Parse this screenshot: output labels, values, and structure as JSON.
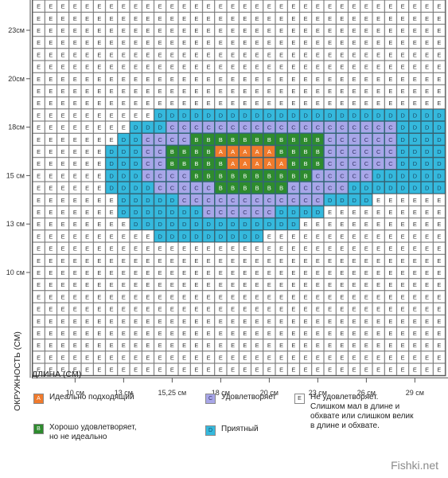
{
  "chart_data": {
    "type": "heatmap",
    "cols": 34,
    "rows": 31,
    "colors": {
      "A": "#f07a2c",
      "B": "#2e8b2e",
      "C": "#a8a6e8",
      "D": "#35b9dd",
      "E": "#ffffff"
    },
    "text_colors": {
      "A": "#ffffff",
      "B": "#ffffff",
      "C": "#333366",
      "D": "#1a4a66",
      "E": "#333333"
    },
    "x_ticks": [
      {
        "label": "10 см",
        "col": 3
      },
      {
        "label": "13 см",
        "col": 7
      },
      {
        "label": "15,25 см",
        "col": 11
      },
      {
        "label": "18 см",
        "col": 15
      },
      {
        "label": "20 см",
        "col": 19
      },
      {
        "label": "23 см",
        "col": 23
      },
      {
        "label": "26 см",
        "col": 27
      },
      {
        "label": "29 см",
        "col": 31
      }
    ],
    "y_ticks": [
      {
        "label": "23см",
        "row": 2
      },
      {
        "label": "20см",
        "row": 6
      },
      {
        "label": "18см",
        "row": 10
      },
      {
        "label": "15 см",
        "row": 14
      },
      {
        "label": "13 см",
        "row": 18
      },
      {
        "label": "10 см",
        "row": 22
      }
    ],
    "regions": [
      {
        "r0": 9,
        "r1": 9,
        "c0": 10,
        "c1": 33,
        "v": "D"
      },
      {
        "r0": 10,
        "r1": 10,
        "c0": 8,
        "c1": 33,
        "v": "D"
      },
      {
        "r0": 11,
        "r1": 11,
        "c0": 7,
        "c1": 33,
        "v": "D"
      },
      {
        "r0": 12,
        "r1": 15,
        "c0": 6,
        "c1": 33,
        "v": "D"
      },
      {
        "r0": 16,
        "r1": 16,
        "c0": 7,
        "c1": 27,
        "v": "D"
      },
      {
        "r0": 17,
        "r1": 17,
        "c0": 7,
        "c1": 23,
        "v": "D"
      },
      {
        "r0": 18,
        "r1": 18,
        "c0": 8,
        "c1": 21,
        "v": "D"
      },
      {
        "r0": 19,
        "r1": 19,
        "c0": 10,
        "c1": 18,
        "v": "D"
      },
      {
        "r0": 10,
        "r1": 10,
        "c0": 11,
        "c1": 29,
        "v": "C"
      },
      {
        "r0": 11,
        "r1": 13,
        "c0": 9,
        "c1": 29,
        "v": "C"
      },
      {
        "r0": 14,
        "r1": 14,
        "c0": 9,
        "c1": 27,
        "v": "C"
      },
      {
        "r0": 15,
        "r1": 15,
        "c0": 10,
        "c1": 25,
        "v": "C"
      },
      {
        "r0": 16,
        "r1": 16,
        "c0": 12,
        "c1": 23,
        "v": "C"
      },
      {
        "r0": 17,
        "r1": 17,
        "c0": 14,
        "c1": 19,
        "v": "C"
      },
      {
        "r0": 11,
        "r1": 11,
        "c0": 13,
        "c1": 23,
        "v": "B"
      },
      {
        "r0": 12,
        "r1": 13,
        "c0": 11,
        "c1": 23,
        "v": "B"
      },
      {
        "r0": 14,
        "r1": 14,
        "c0": 13,
        "c1": 22,
        "v": "B"
      },
      {
        "r0": 15,
        "r1": 15,
        "c0": 15,
        "c1": 20,
        "v": "B"
      },
      {
        "r0": 12,
        "r1": 12,
        "c0": 15,
        "c1": 19,
        "v": "A"
      },
      {
        "r0": 13,
        "r1": 13,
        "c0": 16,
        "c1": 20,
        "v": "A"
      }
    ],
    "xlabel": "ДЛИНА (СМ)",
    "ylabel": "ОКРУЖНОСТЬ (СМ)",
    "legend": [
      {
        "code": "A",
        "label": "Идеально подходящий"
      },
      {
        "code": "B",
        "label": "Хорошо удовлетворяет,\nно не идеально"
      },
      {
        "code": "C",
        "label": "Удовлетворяет"
      },
      {
        "code": "D",
        "label": "Приятный"
      },
      {
        "code": "E",
        "label": "Не удовлетворяет.\nСлишком мал в длине и\nобхвате или слишком велик\nв длине и обхвате."
      }
    ]
  },
  "watermark": "Fishki.net"
}
